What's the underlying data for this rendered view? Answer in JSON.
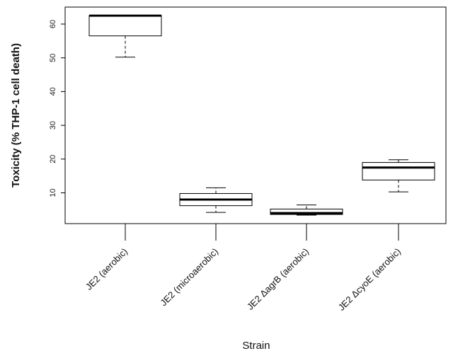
{
  "chart_data": {
    "type": "box",
    "xlabel": "Strain",
    "ylabel": "Toxicity (% THP-1 cell death)",
    "ylim": [
      0,
      65
    ],
    "yticks": [
      10,
      20,
      30,
      40,
      50,
      60
    ],
    "categories": [
      "JE2 (aerobic)",
      "JE2 (microaerobic)",
      "JE2 ΔagrB (aerobic)",
      "JE2 ΔcyoE (aerobic)"
    ],
    "boxes": [
      {
        "whisker_low": 50.2,
        "q1": 56.5,
        "median": 62.5,
        "q3": 62.5,
        "whisker_high": 62.5
      },
      {
        "whisker_low": 4.2,
        "q1": 6.2,
        "median": 8.0,
        "q3": 9.8,
        "whisker_high": 11.5
      },
      {
        "whisker_low": 3.4,
        "q1": 3.6,
        "median": 4.0,
        "q3": 5.2,
        "whisker_high": 6.4
      },
      {
        "whisker_low": 10.3,
        "q1": 13.8,
        "median": 17.5,
        "q3": 19.0,
        "whisker_high": 19.8
      }
    ],
    "box_fill": "#ffffff",
    "line_color": "#000000",
    "grid": false
  }
}
